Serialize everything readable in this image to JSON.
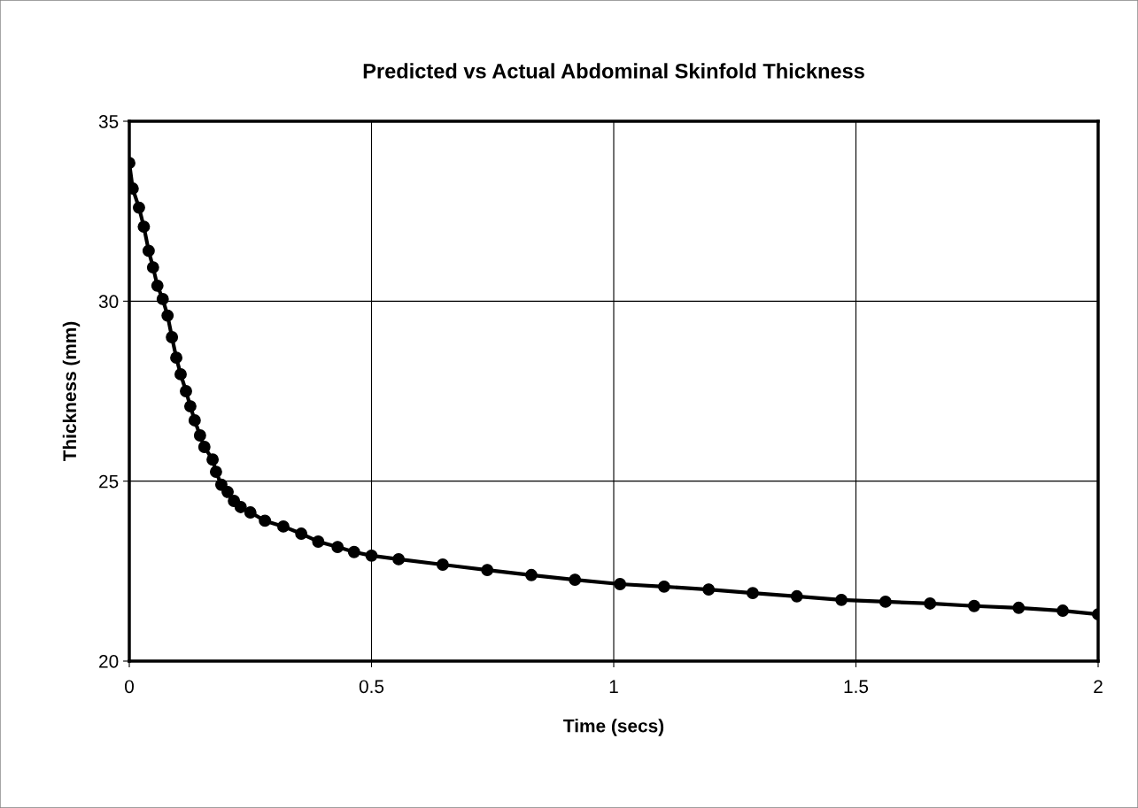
{
  "chart_data": {
    "type": "line",
    "title": "Predicted vs Actual Abdominal Skinfold Thickness",
    "xlabel": "Time (secs)",
    "ylabel": "Thickness (mm)",
    "x": [
      0,
      0.007,
      0.02,
      0.03,
      0.04,
      0.049,
      0.058,
      0.069,
      0.079,
      0.088,
      0.097,
      0.106,
      0.117,
      0.126,
      0.135,
      0.146,
      0.155,
      0.172,
      0.179,
      0.19,
      0.203,
      0.216,
      0.23,
      0.25,
      0.28,
      0.318,
      0.355,
      0.39,
      0.43,
      0.464,
      0.5,
      0.556,
      0.647,
      0.739,
      0.83,
      0.92,
      1.013,
      1.104,
      1.196,
      1.287,
      1.378,
      1.47,
      1.561,
      1.653,
      1.744,
      1.836,
      1.927,
      2.0
    ],
    "series": [
      {
        "color": "#000000",
        "values": [
          33.84,
          33.13,
          32.6,
          32.07,
          31.4,
          30.94,
          30.43,
          30.06,
          29.6,
          29.0,
          28.43,
          27.97,
          27.5,
          27.08,
          26.69,
          26.27,
          25.95,
          25.6,
          25.26,
          24.9,
          24.7,
          24.45,
          24.28,
          24.13,
          23.9,
          23.74,
          23.54,
          23.32,
          23.17,
          23.03,
          22.93,
          22.83,
          22.68,
          22.53,
          22.39,
          22.26,
          22.14,
          22.07,
          21.99,
          21.89,
          21.8,
          21.7,
          21.65,
          21.6,
          21.53,
          21.48,
          21.4,
          21.3
        ]
      }
    ],
    "xlim": [
      0,
      2
    ],
    "xticks": [
      0,
      0.5,
      1,
      1.5,
      2
    ],
    "ylim": [
      20,
      35
    ],
    "yticks": [
      20,
      25,
      30,
      35
    ],
    "grid": true,
    "marker": "circle",
    "line_style": "solid"
  }
}
